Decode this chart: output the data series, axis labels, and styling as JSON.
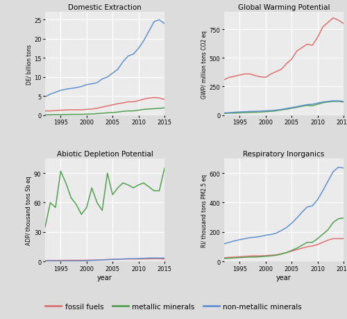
{
  "years": [
    1992,
    1993,
    1994,
    1995,
    1996,
    1997,
    1998,
    1999,
    2000,
    2001,
    2002,
    2003,
    2004,
    2005,
    2006,
    2007,
    2008,
    2009,
    2010,
    2011,
    2012,
    2013,
    2014,
    2015
  ],
  "DE_fossil": [
    1.1,
    1.1,
    1.2,
    1.3,
    1.35,
    1.4,
    1.4,
    1.4,
    1.5,
    1.6,
    1.8,
    2.1,
    2.4,
    2.7,
    3.0,
    3.2,
    3.5,
    3.5,
    3.8,
    4.2,
    4.5,
    4.6,
    4.5,
    4.1
  ],
  "DE_metallic": [
    0.1,
    0.1,
    0.15,
    0.15,
    0.15,
    0.2,
    0.2,
    0.2,
    0.25,
    0.3,
    0.4,
    0.5,
    0.6,
    0.7,
    0.8,
    1.0,
    1.1,
    1.1,
    1.3,
    1.5,
    1.6,
    1.7,
    1.8,
    1.9
  ],
  "DE_nonmetallic": [
    4.8,
    5.5,
    6.0,
    6.5,
    6.8,
    7.0,
    7.2,
    7.5,
    8.0,
    8.2,
    8.5,
    9.5,
    10.0,
    11.0,
    12.0,
    14.0,
    15.5,
    16.0,
    17.5,
    19.5,
    22.0,
    24.5,
    25.0,
    24.0
  ],
  "GWP_fossil": [
    310,
    330,
    340,
    350,
    360,
    360,
    345,
    335,
    330,
    360,
    380,
    400,
    450,
    490,
    560,
    590,
    620,
    610,
    680,
    770,
    810,
    850,
    830,
    800
  ],
  "GWP_metallic": [
    15,
    17,
    18,
    20,
    22,
    24,
    25,
    27,
    30,
    33,
    38,
    45,
    52,
    60,
    68,
    78,
    85,
    82,
    95,
    108,
    115,
    120,
    120,
    115
  ],
  "GWP_nonmetallic": [
    20,
    22,
    25,
    28,
    30,
    32,
    33,
    35,
    38,
    40,
    44,
    50,
    58,
    66,
    74,
    84,
    92,
    95,
    105,
    115,
    120,
    125,
    125,
    120
  ],
  "ADP_fossil": [
    1.0,
    1.0,
    1.0,
    1.1,
    1.2,
    1.2,
    1.2,
    1.2,
    1.3,
    1.4,
    1.5,
    1.7,
    2.0,
    2.2,
    2.3,
    2.4,
    2.5,
    2.5,
    2.5,
    2.6,
    2.7,
    2.8,
    2.8,
    2.5
  ],
  "ADP_metallic": [
    35,
    60,
    55,
    92,
    80,
    65,
    58,
    48,
    55,
    75,
    60,
    52,
    90,
    68,
    75,
    80,
    78,
    75,
    78,
    80,
    76,
    72,
    72,
    95
  ],
  "ADP_nonmetallic": [
    0.5,
    0.5,
    0.5,
    0.5,
    0.5,
    0.5,
    0.5,
    0.5,
    0.8,
    1.0,
    1.2,
    1.5,
    1.8,
    2.0,
    2.2,
    2.5,
    2.8,
    2.8,
    3.0,
    3.2,
    3.5,
    3.5,
    3.5,
    3.5
  ],
  "RI_fossil": [
    25,
    28,
    30,
    32,
    35,
    37,
    38,
    38,
    40,
    42,
    45,
    52,
    60,
    70,
    80,
    90,
    100,
    105,
    115,
    130,
    145,
    155,
    155,
    155
  ],
  "RI_metallic": [
    20,
    22,
    24,
    26,
    28,
    30,
    30,
    32,
    35,
    38,
    42,
    50,
    60,
    75,
    90,
    110,
    130,
    130,
    155,
    185,
    215,
    265,
    290,
    295
  ],
  "RI_nonmetallic": [
    120,
    130,
    140,
    148,
    155,
    162,
    165,
    170,
    178,
    183,
    192,
    210,
    230,
    260,
    295,
    335,
    370,
    378,
    420,
    480,
    545,
    610,
    640,
    635
  ],
  "color_fossil": "#e07070",
  "color_metallic": "#50a050",
  "color_nonmetallic": "#6090d0",
  "bg_color": "#dcdcdc",
  "plot_bg_color": "#ebebeb",
  "title_DE": "Domestic Extraction",
  "title_GWP": "Global Warming Potential",
  "title_ADP": "Abiotic Depletion Potential",
  "title_RI": "Respiratory Inorganics",
  "ylabel_DE": "DE/ billion tons",
  "ylabel_GWP": "GWP/ million tons CO2 eq",
  "ylabel_ADP": "ADP/ thousand tons Sb eq",
  "ylabel_RI": "RI/ thousand tons PM2.5 eq",
  "xlabel_bottom": "year",
  "legend_fossil": "fossil fuels",
  "legend_metallic": "metallic minerals",
  "legend_nonmetallic": "non-metallic minerals",
  "ylim_DE": [
    0,
    27
  ],
  "ylim_GWP": [
    0,
    900
  ],
  "ylim_ADP": [
    0,
    105
  ],
  "ylim_RI": [
    0,
    700
  ],
  "yticks_DE": [
    0,
    5,
    10,
    15,
    20,
    25
  ],
  "yticks_GWP": [
    0,
    250,
    500,
    750
  ],
  "yticks_ADP": [
    0,
    30,
    60,
    90
  ],
  "yticks_RI": [
    0,
    200,
    400,
    600
  ],
  "xlim": [
    1992,
    2015
  ],
  "xticks": [
    1995,
    2000,
    2005,
    2010,
    2015
  ]
}
